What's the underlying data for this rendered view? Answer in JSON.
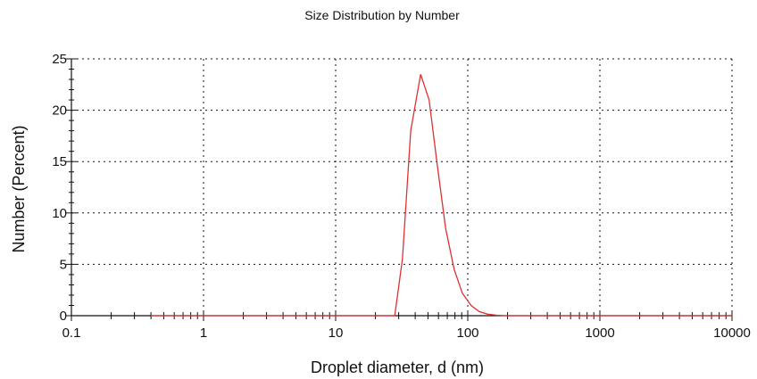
{
  "chart_data": {
    "type": "line",
    "title": "Size Distribution by Number",
    "xlabel": "Droplet diameter, d (nm)",
    "ylabel": "Number (Percent)",
    "x_scale": "log",
    "xlim": [
      0.1,
      10000
    ],
    "ylim": [
      0,
      25
    ],
    "grid": true,
    "x_ticks": [
      "0.1",
      "1",
      "10",
      "100",
      "1000",
      "10000"
    ],
    "y_ticks": [
      "0",
      "5",
      "10",
      "15",
      "20",
      "25"
    ],
    "series": [
      {
        "color": "#e03030",
        "x": [
          0.4,
          1,
          10,
          28,
          32,
          37,
          44,
          51,
          59,
          68,
          79,
          91,
          106,
          122,
          141,
          164,
          190,
          220,
          300,
          1000,
          10000
        ],
        "y": [
          0,
          0,
          0,
          0,
          5.5,
          18.0,
          23.5,
          21.0,
          14.5,
          8.5,
          4.5,
          2.2,
          1.0,
          0.4,
          0.15,
          0.05,
          0,
          0,
          0,
          0,
          0
        ]
      }
    ]
  }
}
